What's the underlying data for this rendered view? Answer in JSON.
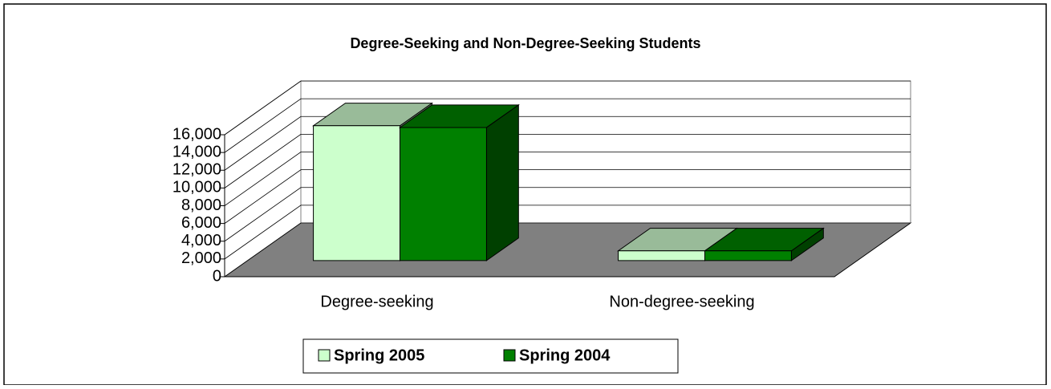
{
  "chart_data": {
    "type": "bar3d",
    "title": "Degree-Seeking and Non-Degree-Seeking Students",
    "categories": [
      "Degree-seeking",
      "Non-degree-seeking"
    ],
    "series": [
      {
        "name": "Spring 2005",
        "color": "#ccffcc",
        "values": [
          15200,
          1100
        ]
      },
      {
        "name": "Spring 2004",
        "color": "#008000",
        "values": [
          15000,
          1100
        ]
      }
    ],
    "ylim": [
      0,
      16000
    ],
    "yticks": [
      0,
      {
        "value": 2000,
        "label": "2,000"
      },
      {
        "value": 4000,
        "label": "4,000"
      },
      {
        "value": 6000,
        "label": "6,000"
      },
      {
        "value": 8000,
        "label": "8,000"
      },
      {
        "value": 10000,
        "label": "10,000"
      },
      {
        "value": 12000,
        "label": "12,000"
      },
      {
        "value": 14000,
        "label": "14,000"
      },
      {
        "value": 16000,
        "label": "16,000"
      }
    ],
    "grid": true,
    "legend": "bottom"
  }
}
